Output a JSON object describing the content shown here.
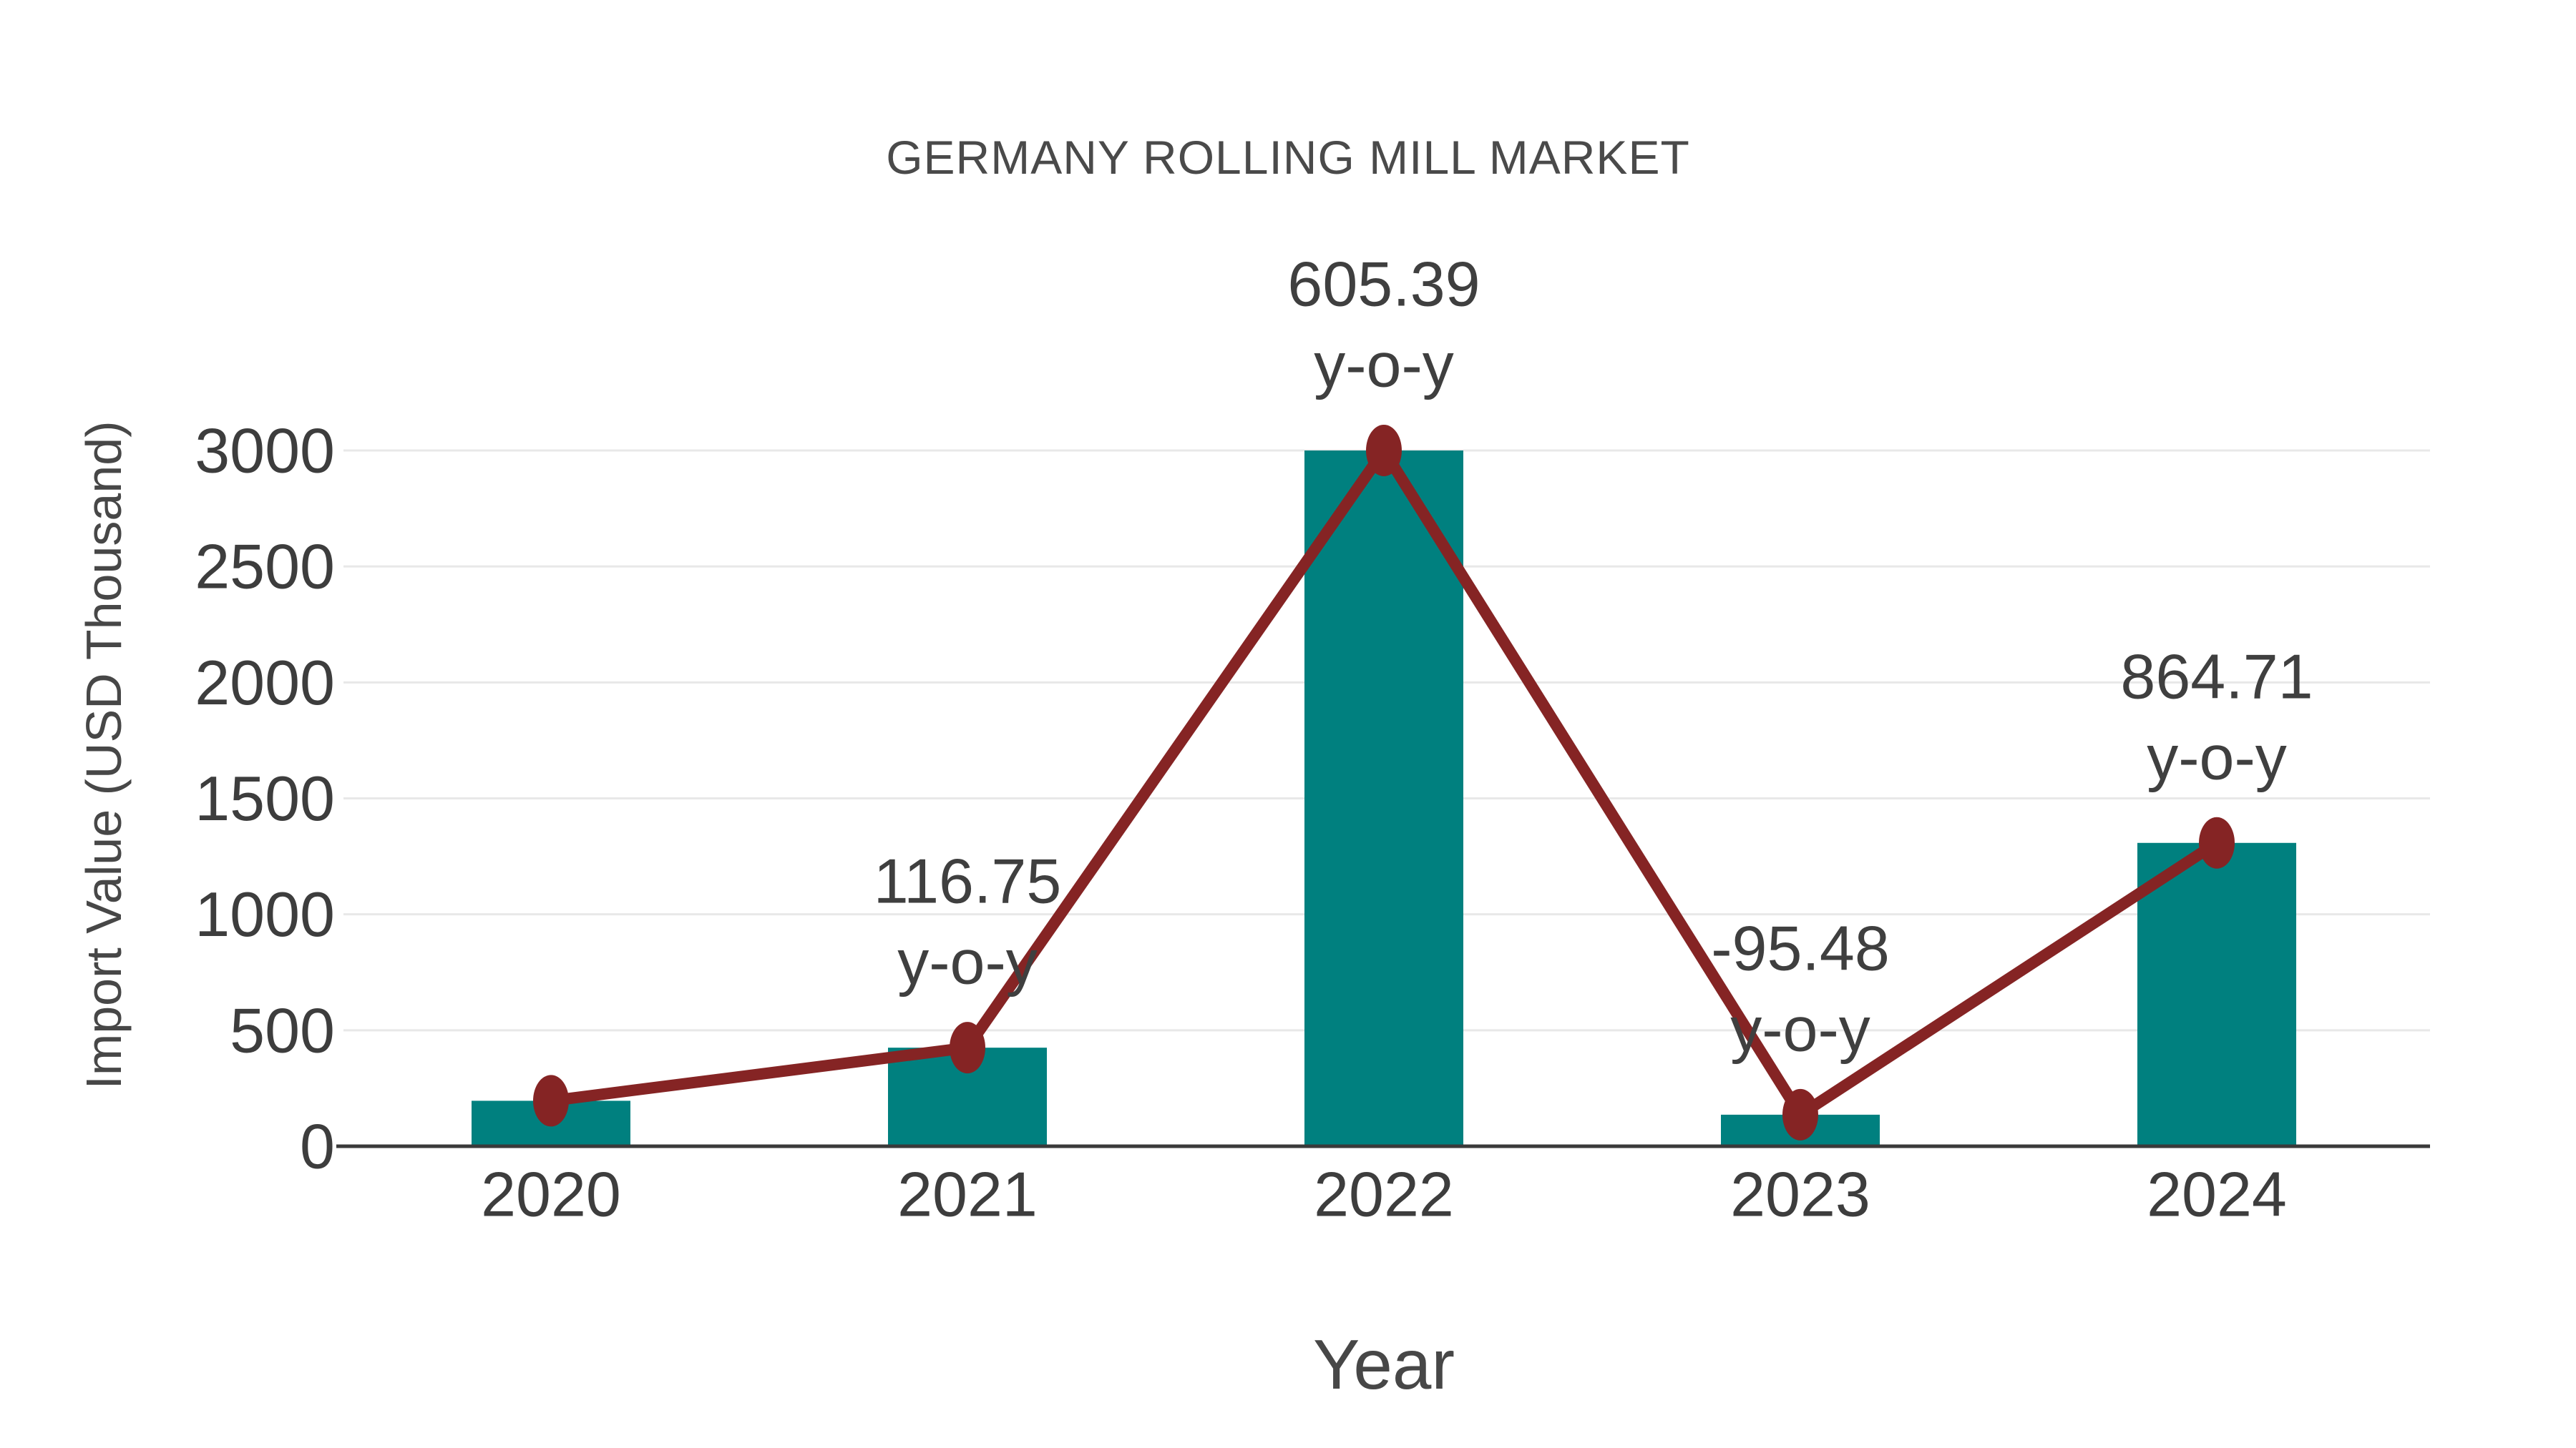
{
  "chart_data": {
    "type": "bar",
    "title": "GERMANY ROLLING MILL MARKET",
    "xlabel": "Year",
    "ylabel": "Import Value (USD Thousand)",
    "categories": [
      "2020",
      "2021",
      "2022",
      "2023",
      "2024"
    ],
    "y_ticks": [
      0,
      500,
      1000,
      1500,
      2000,
      2500,
      3000
    ],
    "ylim": [
      0,
      3100
    ],
    "grid": true,
    "legend": "none",
    "series": [
      {
        "name": "Import Value bars",
        "type": "bar",
        "color": "#00807F",
        "values": [
          196,
          425,
          3000,
          136,
          1308
        ]
      },
      {
        "name": "Import Value trend line",
        "type": "line",
        "color": "#852424",
        "values": [
          196,
          425,
          3000,
          136,
          1308
        ]
      }
    ],
    "annotations": [
      {
        "category": "2021",
        "value_label": "116.75",
        "suffix_label": "y-o-y"
      },
      {
        "category": "2022",
        "value_label": "605.39",
        "suffix_label": "y-o-y"
      },
      {
        "category": "2023",
        "value_label": "-95.48",
        "suffix_label": "y-o-y"
      },
      {
        "category": "2024",
        "value_label": "864.71",
        "suffix_label": "y-o-y"
      }
    ],
    "colors": {
      "bar": "#00807F",
      "line": "#852424",
      "marker": "#852424",
      "grid": "#e8e8e8",
      "axis": "#3a3a3a",
      "tick_text": "#3d3d3d",
      "annotation_text": "#3f3f3f",
      "title_text": "#4a4a4a"
    }
  }
}
